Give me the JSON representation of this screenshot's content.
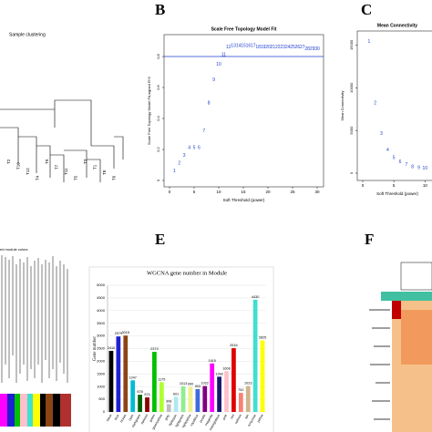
{
  "panel_labels": [
    "B",
    "C",
    "E",
    "F"
  ],
  "sample_clustering": {
    "title": "Sample clustering",
    "labels": [
      "T2",
      "T10",
      "T12",
      "T4",
      "T9",
      "T7",
      "T11",
      "T5",
      "T3",
      "T1",
      "T8",
      "T6"
    ]
  },
  "module_dendrogram": {
    "caption": "ed module colors"
  },
  "chart_data": [
    {
      "type": "labeled_scatter",
      "title": "Scale Free Topology Model Fit",
      "x_label": "Soft Threshold (power)",
      "y_label": "Scale Free Topology Model Fit,signed R^2",
      "x": [
        1,
        2,
        3,
        4,
        5,
        6,
        7,
        8,
        9,
        10,
        11,
        12,
        13,
        14,
        15,
        16,
        17,
        18,
        19,
        20,
        21,
        22,
        23,
        24,
        25,
        26,
        27,
        28,
        29,
        30
      ],
      "values": [
        0.06,
        0.11,
        0.16,
        0.21,
        0.21,
        0.21,
        0.32,
        0.5,
        0.65,
        0.75,
        0.81,
        0.86,
        0.87,
        0.87,
        0.87,
        0.87,
        0.87,
        0.86,
        0.86,
        0.86,
        0.86,
        0.86,
        0.86,
        0.86,
        0.86,
        0.86,
        0.86,
        0.85,
        0.85,
        0.85
      ],
      "color": "#1f3fcf",
      "cutoff": 0.8,
      "xlim": [
        0,
        30
      ],
      "ylim": [
        0,
        0.9
      ],
      "xticks": [
        0,
        5,
        10,
        15,
        20,
        25,
        30
      ],
      "yticks": [
        0,
        0.2,
        0.4,
        0.6,
        0.8
      ]
    },
    {
      "type": "labeled_scatter",
      "title": "Mean Connectivity",
      "x_label": "Soft Threshold (power)",
      "y_label": "Mean Connectivity",
      "x": [
        1,
        2,
        3,
        4,
        5,
        6,
        7,
        8,
        9,
        10
      ],
      "values": [
        15400,
        8200,
        4600,
        2700,
        1800,
        1300,
        1000,
        750,
        600,
        550
      ],
      "color": "#1f3fcf",
      "xlim": [
        0,
        12
      ],
      "ylim": [
        0,
        16000
      ],
      "xticks": [
        0,
        5,
        10
      ],
      "yticks": [
        0,
        5000,
        10000,
        15000
      ]
    },
    {
      "type": "bar",
      "title": "WGCNA gene number in Module",
      "x_label": "Module",
      "y_label": "Gene number",
      "categories": [
        "black",
        "blue",
        "brown",
        "cyan",
        "darkgreen",
        "darkred",
        "green",
        "greenyellow",
        "grey",
        "lightcyan",
        "lightgreen",
        "lightyellow",
        "royalblue",
        "purple",
        "magenta",
        "midnightblue",
        "pink",
        "red",
        "salmon",
        "tan",
        "turquoise",
        "yellow"
      ],
      "values": [
        2410,
        2979,
        3015,
        1247,
        678,
        574,
        2373,
        1175,
        308,
        601,
        1013,
        990,
        903,
        1022,
        1915,
        1392,
        1608,
        2516,
        752,
        1023,
        4430,
        2825
      ],
      "colors": [
        "#000000",
        "#2020d0",
        "#8b4513",
        "#00bcd4",
        "#006400",
        "#8b0000",
        "#00c000",
        "#adff2f",
        "#bebebe",
        "#b0e8f0",
        "#90ee90",
        "#f0f090",
        "#4169e1",
        "#800080",
        "#ff00ff",
        "#191970",
        "#ffc0cb",
        "#e00000",
        "#fa8072",
        "#d2b48c",
        "#40e0d0",
        "#ffff00"
      ],
      "ylim": [
        0,
        5000
      ],
      "yticks": [
        0,
        500,
        1000,
        1500,
        2000,
        2500,
        3000,
        3500,
        4000,
        4500,
        5000
      ]
    }
  ]
}
